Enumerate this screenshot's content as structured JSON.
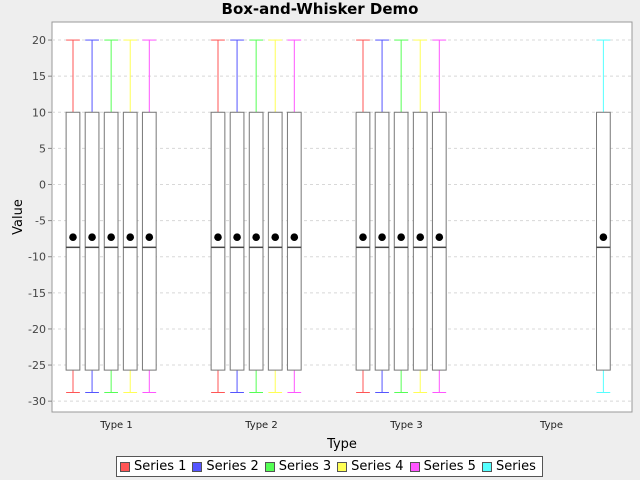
{
  "chart_data": {
    "type": "box",
    "title": "Box-and-Whisker Demo",
    "xlabel": "Type",
    "ylabel": "Value",
    "ylim": [
      -31.5,
      22.5
    ],
    "yticks": [
      20,
      15,
      10,
      5,
      0,
      -5,
      -10,
      -15,
      -20,
      -25,
      -30
    ],
    "grid": true,
    "legend_position": "bottom",
    "categories": [
      "Type 1",
      "Type 2",
      "Type 3",
      "Type"
    ],
    "series": [
      {
        "name": "Series 1",
        "color": "#ff5555",
        "present": [
          true,
          true,
          true,
          false
        ]
      },
      {
        "name": "Series 2",
        "color": "#5555ff",
        "present": [
          true,
          true,
          true,
          false
        ]
      },
      {
        "name": "Series 3",
        "color": "#55ff55",
        "present": [
          true,
          true,
          true,
          false
        ]
      },
      {
        "name": "Series 4",
        "color": "#ffff55",
        "present": [
          true,
          true,
          true,
          false
        ]
      },
      {
        "name": "Series 5",
        "color": "#ff55ff",
        "present": [
          true,
          true,
          true,
          false
        ]
      },
      {
        "name": "Series",
        "color": "#55ffff",
        "present": [
          false,
          false,
          false,
          true
        ]
      }
    ],
    "box_stats": {
      "whisker_max": 20,
      "q3": 10,
      "median": -8.7,
      "mean": -7.3,
      "q1": -25.7,
      "whisker_min": -28.8
    }
  }
}
